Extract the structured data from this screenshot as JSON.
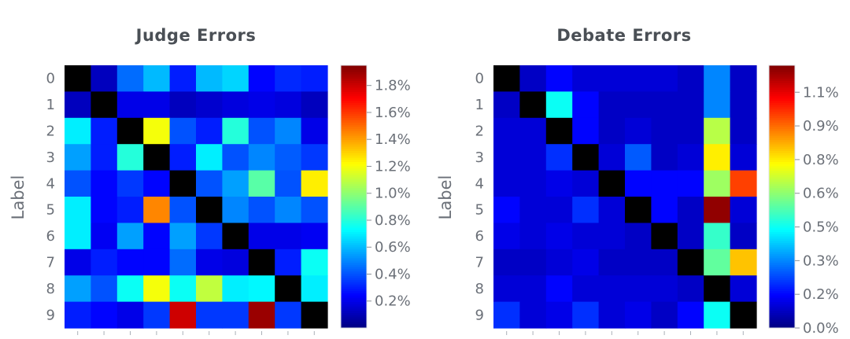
{
  "chart_data": [
    {
      "type": "heatmap",
      "title": "Judge Errors",
      "ylabel": "Label",
      "row_labels": [
        "0",
        "1",
        "2",
        "3",
        "4",
        "5",
        "6",
        "7",
        "8",
        "9"
      ],
      "colorbar": {
        "vmin": 0.0,
        "vmax": 1.95,
        "colormap": "jet",
        "tick_values": [
          0.2,
          0.4,
          0.6,
          0.8,
          1.0,
          1.2,
          1.4,
          1.6,
          1.8
        ],
        "tick_labels": [
          "0.2%",
          "0.4%",
          "0.6%",
          "0.8%",
          "1.0%",
          "1.2%",
          "1.4%",
          "1.6%",
          "1.8%"
        ]
      },
      "values": [
        [
          0.0,
          0.12,
          0.45,
          0.6,
          0.3,
          0.6,
          0.65,
          0.25,
          0.32,
          0.3
        ],
        [
          0.12,
          0.0,
          0.2,
          0.2,
          0.12,
          0.15,
          0.18,
          0.2,
          0.18,
          0.12
        ],
        [
          0.7,
          0.3,
          0.0,
          1.2,
          0.4,
          0.3,
          0.8,
          0.4,
          0.5,
          0.2
        ],
        [
          0.55,
          0.3,
          0.8,
          0.0,
          0.3,
          0.7,
          0.4,
          0.5,
          0.42,
          0.35
        ],
        [
          0.4,
          0.25,
          0.35,
          0.25,
          0.0,
          0.4,
          0.55,
          0.9,
          0.4,
          1.25
        ],
        [
          0.7,
          0.25,
          0.3,
          1.45,
          0.4,
          0.0,
          0.5,
          0.4,
          0.5,
          0.4
        ],
        [
          0.7,
          0.22,
          0.55,
          0.25,
          0.55,
          0.35,
          0.0,
          0.2,
          0.2,
          0.22
        ],
        [
          0.2,
          0.3,
          0.25,
          0.25,
          0.45,
          0.2,
          0.18,
          0.0,
          0.3,
          0.75
        ],
        [
          0.55,
          0.4,
          0.75,
          1.2,
          0.75,
          1.1,
          0.7,
          0.72,
          0.0,
          0.7
        ],
        [
          0.3,
          0.25,
          0.2,
          0.35,
          1.8,
          0.35,
          0.35,
          1.9,
          0.35,
          0.0
        ]
      ]
    },
    {
      "type": "heatmap",
      "title": "Debate Errors",
      "ylabel": "Label",
      "row_labels": [
        "0",
        "1",
        "2",
        "3",
        "4",
        "5",
        "6",
        "7",
        "8",
        "9"
      ],
      "colorbar": {
        "vmin": 0.0,
        "vmax": 1.17,
        "colormap": "jet",
        "tick_values": [
          0.0,
          0.15,
          0.3,
          0.45,
          0.6,
          0.75,
          0.9,
          1.05
        ],
        "tick_labels": [
          "0.0%",
          "0.2%",
          "0.3%",
          "0.5%",
          "0.6%",
          "0.8%",
          "0.9%",
          "1.1%"
        ]
      },
      "values": [
        [
          0.0,
          0.08,
          0.15,
          0.1,
          0.1,
          0.1,
          0.1,
          0.08,
          0.3,
          0.08
        ],
        [
          0.08,
          0.0,
          0.45,
          0.15,
          0.08,
          0.08,
          0.08,
          0.08,
          0.3,
          0.08
        ],
        [
          0.1,
          0.1,
          0.0,
          0.15,
          0.08,
          0.1,
          0.08,
          0.08,
          0.65,
          0.08
        ],
        [
          0.1,
          0.1,
          0.2,
          0.0,
          0.1,
          0.25,
          0.08,
          0.1,
          0.75,
          0.1
        ],
        [
          0.1,
          0.1,
          0.12,
          0.1,
          0.0,
          0.15,
          0.15,
          0.15,
          0.62,
          0.95
        ],
        [
          0.15,
          0.1,
          0.1,
          0.2,
          0.1,
          0.0,
          0.15,
          0.08,
          1.15,
          0.1
        ],
        [
          0.12,
          0.1,
          0.12,
          0.1,
          0.1,
          0.08,
          0.0,
          0.08,
          0.5,
          0.08
        ],
        [
          0.08,
          0.08,
          0.1,
          0.12,
          0.08,
          0.08,
          0.08,
          0.0,
          0.55,
          0.8
        ],
        [
          0.1,
          0.1,
          0.15,
          0.1,
          0.1,
          0.1,
          0.1,
          0.08,
          0.0,
          0.1
        ],
        [
          0.2,
          0.1,
          0.12,
          0.2,
          0.1,
          0.12,
          0.08,
          0.15,
          0.45,
          0.0
        ]
      ]
    }
  ]
}
